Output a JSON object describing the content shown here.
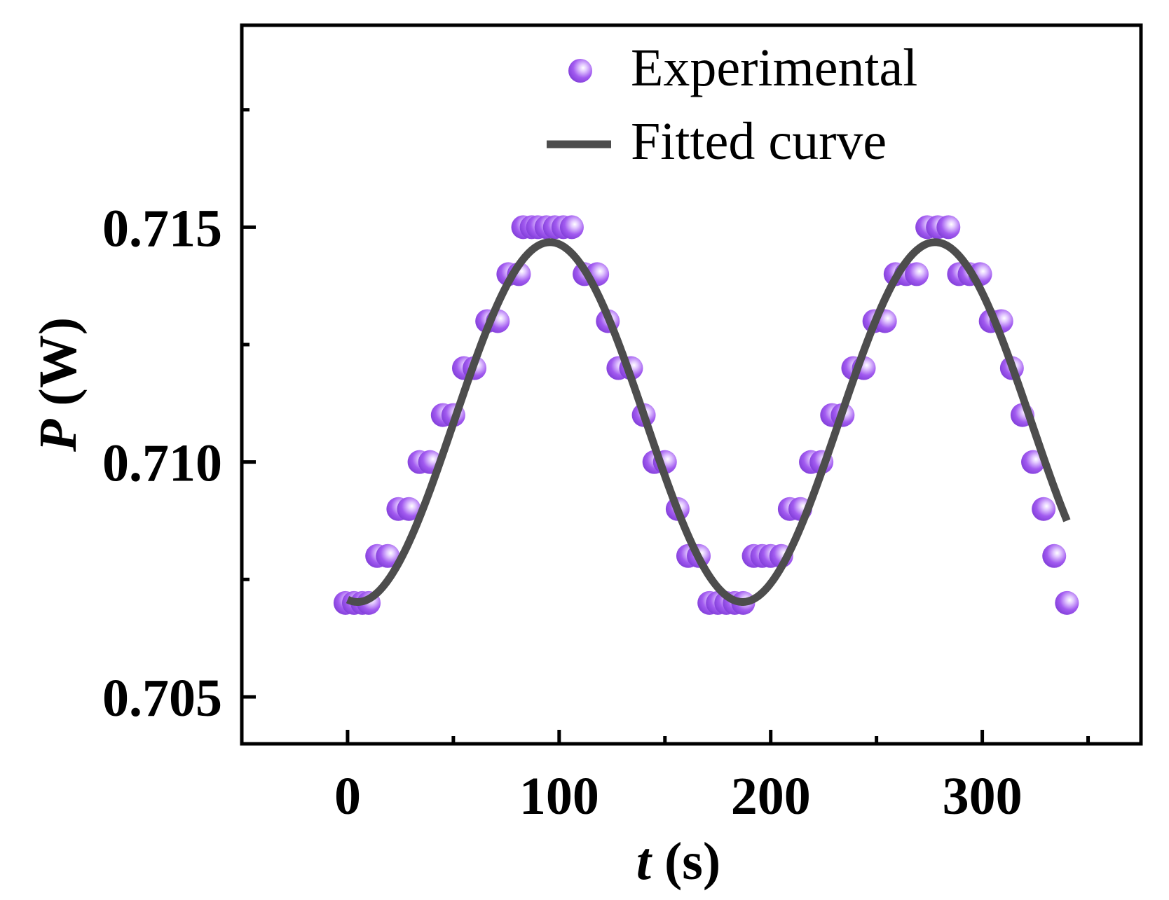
{
  "chart_data": {
    "type": "scatter",
    "title": "",
    "xlabel": {
      "symbol": "t",
      "unit": " (s)"
    },
    "ylabel": {
      "symbol": "P",
      "unit": " (W)"
    },
    "xlim": [
      -50,
      375
    ],
    "ylim": [
      0.704,
      0.7193
    ],
    "x_ticks": [
      0,
      100,
      200,
      300
    ],
    "x_minor_ticks": [
      50,
      150,
      250,
      350
    ],
    "y_ticks": [
      0.705,
      0.71,
      0.715
    ],
    "y_tick_labels": [
      "0.705",
      "0.710",
      "0.715"
    ],
    "y_minor_ticks": [
      0.7075,
      0.7125,
      0.7175
    ],
    "legend": {
      "position": "top-right",
      "entries": [
        {
          "label": "Experimental",
          "kind": "marker"
        },
        {
          "label": "Fitted curve",
          "kind": "line"
        }
      ]
    },
    "series": [
      {
        "name": "Experimental",
        "kind": "scatter",
        "color": "#a25bf0",
        "points": [
          [
            -1,
            0.707
          ],
          [
            3,
            0.707
          ],
          [
            7,
            0.707
          ],
          [
            10,
            0.707
          ],
          [
            14,
            0.708
          ],
          [
            19,
            0.708
          ],
          [
            24,
            0.709
          ],
          [
            29,
            0.709
          ],
          [
            34,
            0.71
          ],
          [
            39,
            0.71
          ],
          [
            45,
            0.711
          ],
          [
            50,
            0.711
          ],
          [
            55,
            0.712
          ],
          [
            60,
            0.712
          ],
          [
            66,
            0.713
          ],
          [
            71,
            0.713
          ],
          [
            76,
            0.714
          ],
          [
            81,
            0.714
          ],
          [
            83,
            0.715
          ],
          [
            87,
            0.715
          ],
          [
            90,
            0.715
          ],
          [
            94,
            0.715
          ],
          [
            98,
            0.715
          ],
          [
            102,
            0.715
          ],
          [
            106,
            0.715
          ],
          [
            112,
            0.714
          ],
          [
            118,
            0.714
          ],
          [
            123,
            0.713
          ],
          [
            128,
            0.712
          ],
          [
            134,
            0.712
          ],
          [
            140,
            0.711
          ],
          [
            145,
            0.71
          ],
          [
            150,
            0.71
          ],
          [
            156,
            0.709
          ],
          [
            161,
            0.708
          ],
          [
            166,
            0.708
          ],
          [
            171,
            0.707
          ],
          [
            175,
            0.707
          ],
          [
            179,
            0.707
          ],
          [
            183,
            0.707
          ],
          [
            187,
            0.707
          ],
          [
            192,
            0.708
          ],
          [
            196,
            0.708
          ],
          [
            200,
            0.708
          ],
          [
            205,
            0.708
          ],
          [
            209,
            0.709
          ],
          [
            214,
            0.709
          ],
          [
            219,
            0.71
          ],
          [
            224,
            0.71
          ],
          [
            229,
            0.711
          ],
          [
            234,
            0.711
          ],
          [
            239,
            0.712
          ],
          [
            244,
            0.712
          ],
          [
            249,
            0.713
          ],
          [
            254,
            0.713
          ],
          [
            259,
            0.714
          ],
          [
            264,
            0.714
          ],
          [
            269,
            0.714
          ],
          [
            274,
            0.715
          ],
          [
            279,
            0.715
          ],
          [
            284,
            0.715
          ],
          [
            289,
            0.714
          ],
          [
            294,
            0.714
          ],
          [
            299,
            0.714
          ],
          [
            304,
            0.713
          ],
          [
            309,
            0.713
          ],
          [
            314,
            0.712
          ],
          [
            319,
            0.711
          ],
          [
            324,
            0.71
          ],
          [
            329,
            0.709
          ],
          [
            334,
            0.708
          ],
          [
            340,
            0.707
          ]
        ]
      },
      {
        "name": "Fitted curve",
        "kind": "line",
        "color": "#4d4d4d",
        "model": "P = 0.71085 + 0.00383 * cos(2*pi*(t - 95.7)/182)",
        "baseline": 0.71085,
        "amplitude": 0.00383,
        "period": 182,
        "phase": 95.7,
        "t_range": [
          0,
          340
        ]
      }
    ]
  }
}
